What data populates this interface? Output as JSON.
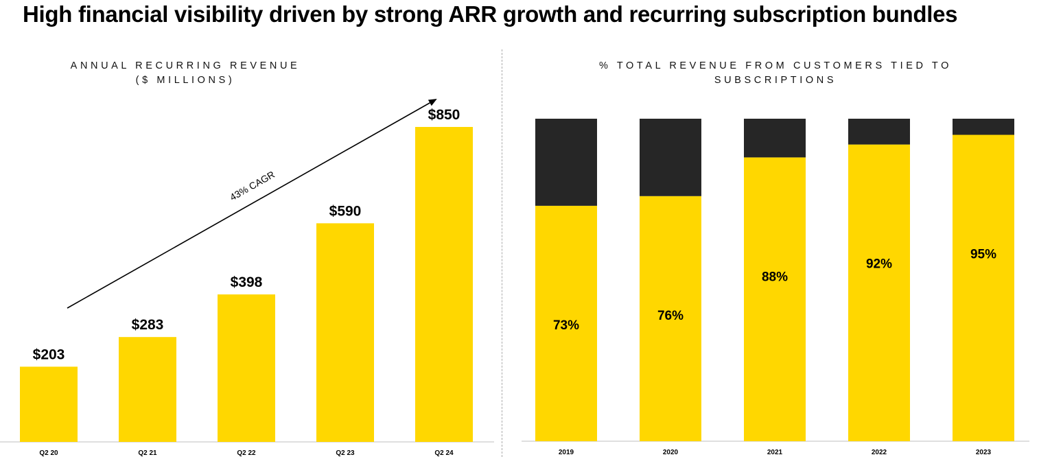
{
  "title": "High financial visibility driven by strong ARR growth and recurring subscription bundles",
  "colors": {
    "primary": "#FFD700",
    "secondary": "#262626"
  },
  "chart_data": [
    {
      "type": "bar",
      "title_lines": [
        "ANNUAL RECURRING REVENUE",
        "($ MILLIONS)"
      ],
      "categories": [
        "Q2 20",
        "Q2 21",
        "Q2 22",
        "Q2 23",
        "Q2 24"
      ],
      "values": [
        203,
        283,
        398,
        590,
        850
      ],
      "data_labels": [
        "$203",
        "$283",
        "$398",
        "$590",
        "$850"
      ],
      "ylim": [
        0,
        1000
      ],
      "grid": false,
      "annotation": "43% CAGR"
    },
    {
      "type": "bar",
      "stacked": true,
      "title_lines": [
        "% TOTAL REVENUE FROM CUSTOMERS TIED TO",
        "SUBSCRIPTIONS"
      ],
      "categories": [
        "2019",
        "2020",
        "2021",
        "2022",
        "2023"
      ],
      "series": [
        {
          "values": [
            73,
            76,
            88,
            92,
            95
          ],
          "labels": [
            "73%",
            "76%",
            "88%",
            "92%",
            "95%"
          ]
        },
        {
          "values": [
            27,
            24,
            12,
            8,
            5
          ]
        }
      ],
      "ylim": [
        0,
        100
      ],
      "grid": false
    }
  ]
}
